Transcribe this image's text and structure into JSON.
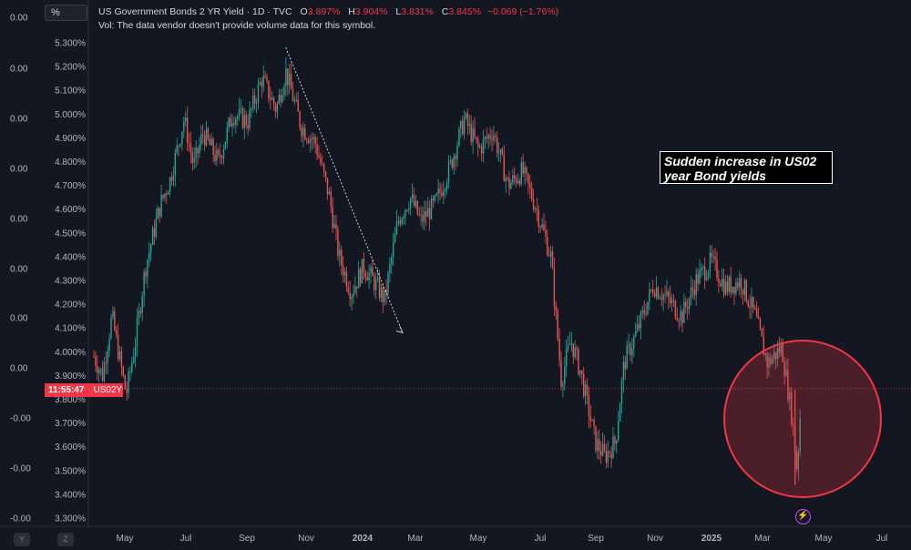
{
  "header": {
    "ticker_box": "%",
    "title": "US Government Bonds 2 YR Yield · 1D · TVC",
    "open_label": "O",
    "open_value": "3.897%",
    "high_label": "H",
    "high_value": "3.904%",
    "low_label": "L",
    "low_value": "3.831%",
    "close_label": "C",
    "close_value": "3.845%",
    "change": "−0.069 (−1.76%)",
    "volume_note": "Vol: The data vendor doesn't provide volume data for this symbol."
  },
  "annotation": "Sudden increase in US02 year Bond yields",
  "price_label": {
    "time": "11:55:47",
    "symbol": "US02Y"
  },
  "bottom_buttons": [
    "Y",
    "Z"
  ],
  "colors": {
    "background": "#131722",
    "up": "#26a69a",
    "down": "#ef5350",
    "highlight": "#f23645",
    "alert": "#c74cf5"
  },
  "chart_data": {
    "type": "candlestick",
    "y_axis_right": {
      "ticks": [
        "5.300%",
        "5.200%",
        "5.100%",
        "5.000%",
        "4.900%",
        "4.800%",
        "4.700%",
        "4.600%",
        "4.500%",
        "4.400%",
        "4.300%",
        "4.200%",
        "4.100%",
        "4.000%",
        "3.900%",
        "3.800%",
        "3.700%",
        "3.600%",
        "3.500%",
        "3.400%",
        "3.300%"
      ],
      "ylim": [
        3.3,
        5.3
      ]
    },
    "y_axis_left": {
      "ticks": [
        "0.00",
        "0.00",
        "0.00",
        "0.00",
        "0.00",
        "0.00",
        "0.00",
        "0.00",
        "-0.00",
        "-0.00",
        "-0.00",
        "-0.00",
        "-0.00"
      ]
    },
    "x_axis": {
      "ticks": [
        "May",
        "Jul",
        "Sep",
        "Nov",
        "2024",
        "Mar",
        "May",
        "Jul",
        "Sep",
        "Nov",
        "2025",
        "Mar",
        "May",
        "Jul"
      ]
    },
    "current_price": 3.845,
    "path_points": [
      {
        "date": "2023-04-01",
        "value": 3.98
      },
      {
        "date": "2023-04-10",
        "value": 3.9
      },
      {
        "date": "2023-04-20",
        "value": 4.15
      },
      {
        "date": "2023-05-05",
        "value": 3.82
      },
      {
        "date": "2023-05-15",
        "value": 4.05
      },
      {
        "date": "2023-05-25",
        "value": 4.35
      },
      {
        "date": "2023-06-10",
        "value": 4.62
      },
      {
        "date": "2023-06-20",
        "value": 4.72
      },
      {
        "date": "2023-07-05",
        "value": 4.98
      },
      {
        "date": "2023-07-15",
        "value": 4.78
      },
      {
        "date": "2023-07-25",
        "value": 4.92
      },
      {
        "date": "2023-08-10",
        "value": 4.8
      },
      {
        "date": "2023-08-25",
        "value": 5.0
      },
      {
        "date": "2023-09-10",
        "value": 4.97
      },
      {
        "date": "2023-09-25",
        "value": 5.15
      },
      {
        "date": "2023-10-10",
        "value": 5.02
      },
      {
        "date": "2023-10-20",
        "value": 5.18
      },
      {
        "date": "2023-11-05",
        "value": 4.95
      },
      {
        "date": "2023-11-20",
        "value": 4.88
      },
      {
        "date": "2023-12-05",
        "value": 4.65
      },
      {
        "date": "2023-12-15",
        "value": 4.4
      },
      {
        "date": "2023-12-28",
        "value": 4.25
      },
      {
        "date": "2024-01-10",
        "value": 4.36
      },
      {
        "date": "2024-01-20",
        "value": 4.3
      },
      {
        "date": "2024-02-01",
        "value": 4.22
      },
      {
        "date": "2024-02-15",
        "value": 4.55
      },
      {
        "date": "2024-02-28",
        "value": 4.65
      },
      {
        "date": "2024-03-10",
        "value": 4.55
      },
      {
        "date": "2024-03-25",
        "value": 4.62
      },
      {
        "date": "2024-04-10",
        "value": 4.78
      },
      {
        "date": "2024-04-25",
        "value": 4.98
      },
      {
        "date": "2024-05-10",
        "value": 4.85
      },
      {
        "date": "2024-05-25",
        "value": 4.93
      },
      {
        "date": "2024-06-10",
        "value": 4.7
      },
      {
        "date": "2024-06-25",
        "value": 4.76
      },
      {
        "date": "2024-07-10",
        "value": 4.6
      },
      {
        "date": "2024-07-25",
        "value": 4.4
      },
      {
        "date": "2024-08-05",
        "value": 3.88
      },
      {
        "date": "2024-08-15",
        "value": 4.05
      },
      {
        "date": "2024-08-25",
        "value": 3.92
      },
      {
        "date": "2024-09-10",
        "value": 3.62
      },
      {
        "date": "2024-09-20",
        "value": 3.56
      },
      {
        "date": "2024-10-01",
        "value": 3.62
      },
      {
        "date": "2024-10-10",
        "value": 3.95
      },
      {
        "date": "2024-10-25",
        "value": 4.1
      },
      {
        "date": "2024-11-10",
        "value": 4.28
      },
      {
        "date": "2024-11-25",
        "value": 4.22
      },
      {
        "date": "2024-12-10",
        "value": 4.15
      },
      {
        "date": "2024-12-25",
        "value": 4.3
      },
      {
        "date": "2025-01-10",
        "value": 4.38
      },
      {
        "date": "2025-01-25",
        "value": 4.27
      },
      {
        "date": "2025-02-10",
        "value": 4.3
      },
      {
        "date": "2025-02-25",
        "value": 4.15
      },
      {
        "date": "2025-03-10",
        "value": 3.95
      },
      {
        "date": "2025-03-25",
        "value": 4.02
      },
      {
        "date": "2025-04-05",
        "value": 3.72
      },
      {
        "date": "2025-04-10",
        "value": 3.5
      },
      {
        "date": "2025-04-15",
        "value": 3.85
      }
    ],
    "trendline": {
      "start": {
        "date": "2023-10-20",
        "value": 5.28
      },
      "end": {
        "date": "2024-02-20",
        "value": 4.08
      }
    },
    "highlight_circle": {
      "center": {
        "date": "2025-04-01",
        "value": 3.72
      },
      "note": "emphasis"
    },
    "horizontal_line": 3.845
  }
}
